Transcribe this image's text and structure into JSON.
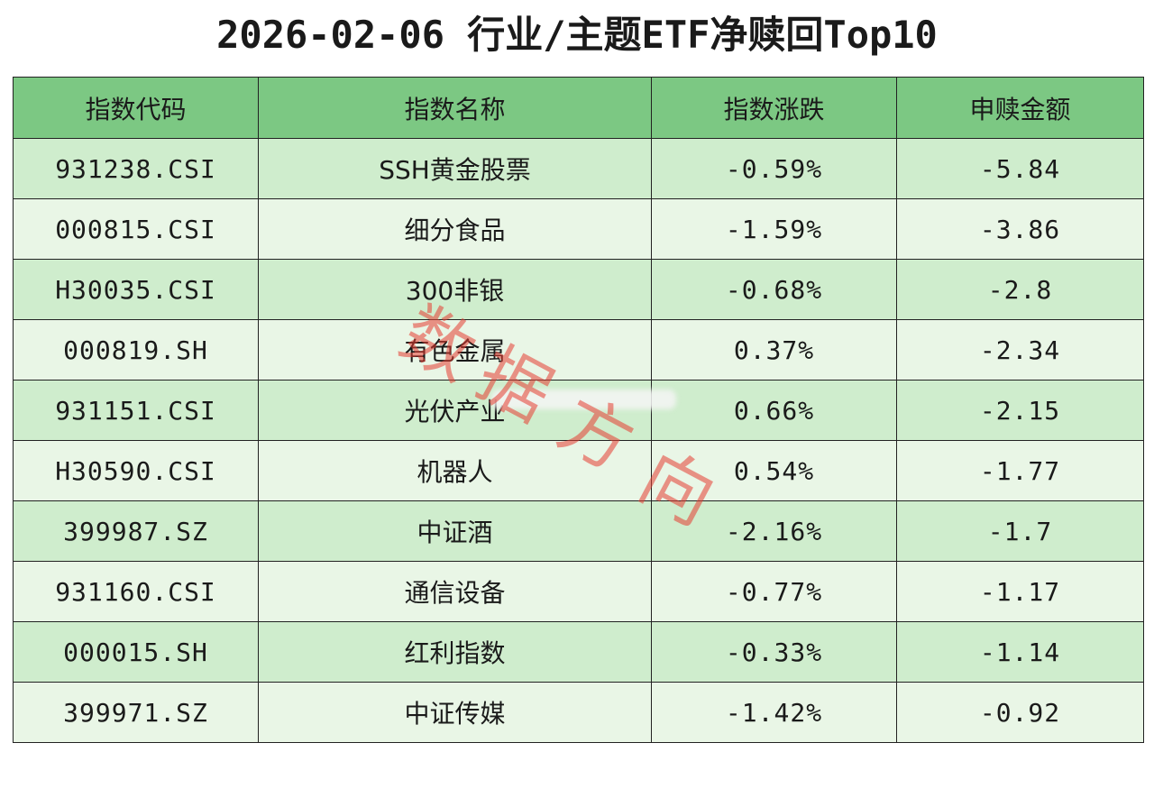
{
  "title": "2026-02-06 行业/主题ETF净赎回Top10",
  "headers": [
    "指数代码",
    "指数名称",
    "指数涨跌",
    "申赎金额"
  ],
  "rows": [
    {
      "code": "931238.CSI",
      "name": "SSH黄金股票",
      "change": "-0.59%",
      "amount": "-5.84"
    },
    {
      "code": "000815.CSI",
      "name": "细分食品",
      "change": "-1.59%",
      "amount": "-3.86"
    },
    {
      "code": "H30035.CSI",
      "name": "300非银",
      "change": "-0.68%",
      "amount": "-2.8"
    },
    {
      "code": "000819.SH",
      "name": "有色金属",
      "change": "0.37%",
      "amount": "-2.34"
    },
    {
      "code": "931151.CSI",
      "name": "光伏产业",
      "change": "0.66%",
      "amount": "-2.15"
    },
    {
      "code": "H30590.CSI",
      "name": "机器人",
      "change": "0.54%",
      "amount": "-1.77"
    },
    {
      "code": "399987.SZ",
      "name": "中证酒",
      "change": "-2.16%",
      "amount": "-1.7"
    },
    {
      "code": "931160.CSI",
      "name": "通信设备",
      "change": "-0.77%",
      "amount": "-1.17"
    },
    {
      "code": "000015.SH",
      "name": "红利指数",
      "change": "-0.33%",
      "amount": "-1.14"
    },
    {
      "code": "399971.SZ",
      "name": "中证传媒",
      "change": "-1.42%",
      "amount": "-0.92"
    }
  ],
  "watermark": [
    "数",
    "据",
    "方",
    "向"
  ],
  "colors": {
    "header_bg": "#7cc883",
    "row_dark": "#cfedcd",
    "row_light": "#e9f6e6",
    "watermark": "#e63c32"
  }
}
